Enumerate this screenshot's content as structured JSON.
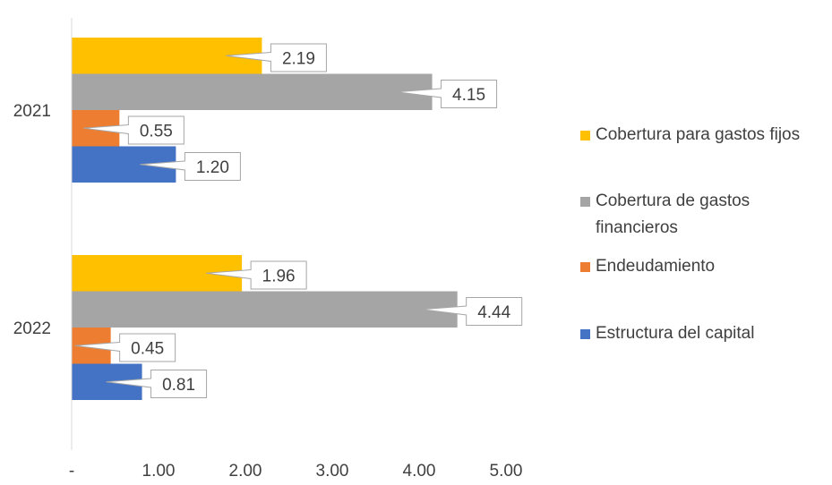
{
  "chart_data": {
    "type": "bar",
    "orientation": "horizontal",
    "categories": [
      "2021",
      "2022"
    ],
    "series": [
      {
        "name": "Cobertura para gastos fijos",
        "color": "#FFC000",
        "values": [
          2.19,
          1.96
        ],
        "labels": [
          "2.19",
          "1.96"
        ]
      },
      {
        "name": "Cobertura de gastos financieros",
        "color": "#A5A5A5",
        "values": [
          4.15,
          4.44
        ],
        "labels": [
          "4.15",
          "4.44"
        ]
      },
      {
        "name": "Endeudamiento",
        "color": "#ED7D31",
        "values": [
          0.55,
          0.45
        ],
        "labels": [
          "0.55",
          "0.45"
        ]
      },
      {
        "name": "Estructura del capital",
        "color": "#4472C4",
        "values": [
          1.2,
          0.81
        ],
        "labels": [
          "1.20",
          "0.81"
        ]
      }
    ],
    "xlim": [
      0,
      5
    ],
    "xticks": [
      "-",
      "1.00",
      "2.00",
      "3.00",
      "4.00",
      "5.00"
    ],
    "grid": false,
    "legend": "right"
  }
}
